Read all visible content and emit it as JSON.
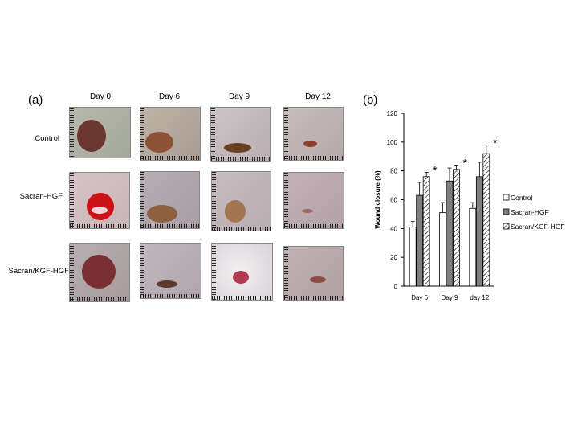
{
  "figure": {
    "panel_a_label": "(a)",
    "panel_b_label": "(b)",
    "days": [
      "Day 0",
      "Day 6",
      "Day 9",
      "Day 12"
    ],
    "groups": [
      "Control",
      "Sacran-HGF",
      "Sacran/KGF-HGF"
    ]
  },
  "chart_data": {
    "type": "bar",
    "categories": [
      "Day 6",
      "Day 9",
      "day 12"
    ],
    "series": [
      {
        "name": "Control",
        "values": [
          41,
          51,
          54
        ],
        "errors": [
          4,
          7,
          4
        ],
        "fill": "white"
      },
      {
        "name": "Sacran-HGF",
        "values": [
          63,
          73,
          76
        ],
        "errors": [
          9,
          9,
          10
        ],
        "fill": "#808080"
      },
      {
        "name": "Sacran/KGF-HGF",
        "values": [
          76,
          81,
          92
        ],
        "errors": [
          3,
          3,
          6
        ],
        "fill": "hatch"
      }
    ],
    "significance": [
      "*",
      "*",
      "*"
    ],
    "ylabel": "Wound closure (%)",
    "xlabel": "",
    "ylim": [
      0,
      120
    ],
    "yticks": [
      0,
      20,
      40,
      60,
      80,
      100,
      120
    ],
    "legend_position": "right"
  }
}
